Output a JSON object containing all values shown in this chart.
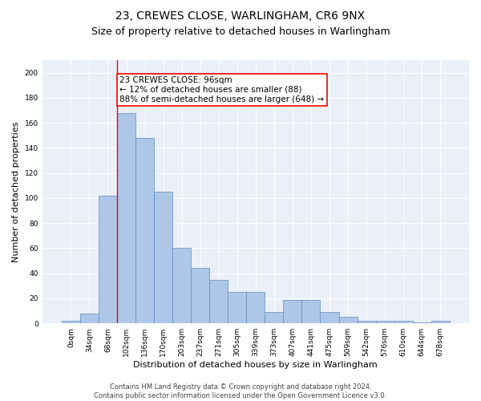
{
  "title": "23, CREWES CLOSE, WARLINGHAM, CR6 9NX",
  "subtitle": "Size of property relative to detached houses in Warlingham",
  "xlabel": "Distribution of detached houses by size in Warlingham",
  "ylabel": "Number of detached properties",
  "bin_labels": [
    "0sqm",
    "34sqm",
    "68sqm",
    "102sqm",
    "136sqm",
    "170sqm",
    "203sqm",
    "237sqm",
    "271sqm",
    "305sqm",
    "339sqm",
    "373sqm",
    "407sqm",
    "441sqm",
    "475sqm",
    "509sqm",
    "542sqm",
    "576sqm",
    "610sqm",
    "644sqm",
    "678sqm"
  ],
  "bar_heights": [
    2,
    8,
    102,
    168,
    148,
    105,
    60,
    44,
    35,
    25,
    25,
    9,
    19,
    19,
    9,
    5,
    2,
    2,
    2,
    1,
    2
  ],
  "bar_color": "#aec6e8",
  "bar_edge_color": "#5a8fc0",
  "bar_width": 1.0,
  "red_line_x": 2.5,
  "annotation_text": "23 CREWES CLOSE: 96sqm\n← 12% of detached houses are smaller (88)\n88% of semi-detached houses are larger (648) →",
  "annotation_box_color": "white",
  "annotation_box_edge_color": "red",
  "red_line_color": "red",
  "ylim": [
    0,
    210
  ],
  "yticks": [
    0,
    20,
    40,
    60,
    80,
    100,
    120,
    140,
    160,
    180,
    200
  ],
  "background_color": "#eaeff8",
  "grid_color": "white",
  "footer_text": "Contains HM Land Registry data © Crown copyright and database right 2024.\nContains public sector information licensed under the Open Government Licence v3.0.",
  "title_fontsize": 10,
  "subtitle_fontsize": 9,
  "xlabel_fontsize": 8,
  "ylabel_fontsize": 8,
  "tick_fontsize": 6.5,
  "annotation_fontsize": 7.5,
  "footer_fontsize": 6
}
